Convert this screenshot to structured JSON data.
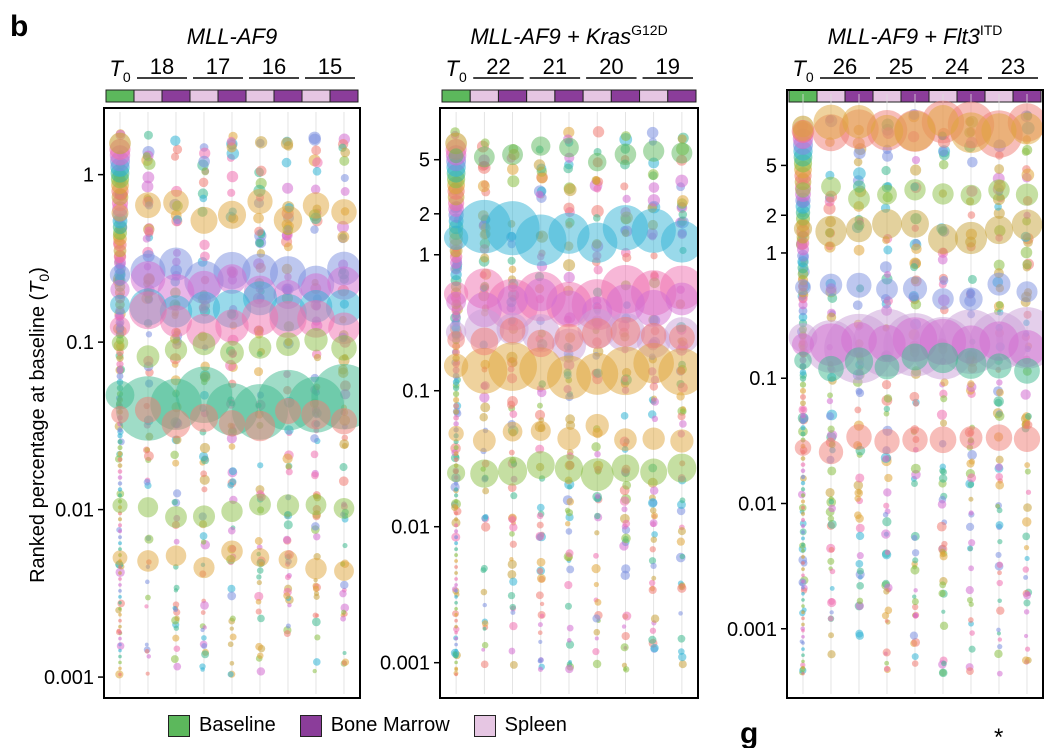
{
  "figure": {
    "panel_letter": "b",
    "next_panel_letter": "g",
    "asterisk": "*",
    "y_axis_label": "Ranked percentage at baseline (T0)",
    "y_axis_label_prefix": "Ranked percentage at baseline (",
    "y_axis_label_T": "T",
    "y_axis_label_sub": "0",
    "y_axis_label_suffix": ")"
  },
  "legend": {
    "items": [
      {
        "label": "Baseline",
        "color": "#5cb85c"
      },
      {
        "label": "Bone Marrow",
        "color": "#8b3d9a"
      },
      {
        "label": "Spleen",
        "color": "#e6c6e3"
      }
    ]
  },
  "colors": {
    "baseline": "#5cb85c",
    "bone_marrow": "#8b3d9a",
    "spleen": "#e6c6e3",
    "bubble_palette": [
      "#f07c73",
      "#e0a63b",
      "#8bbf45",
      "#3fb98f",
      "#33b4d6",
      "#7b8fe0",
      "#d36ed1",
      "#f070b0",
      "#c8a33c"
    ]
  },
  "chart_data": [
    {
      "type": "scatter",
      "title": "MLL-AF9",
      "title_parts": {
        "main": "MLL-AF9",
        "gene": "",
        "superscript": ""
      },
      "baseline_label": "T0",
      "baseline_T": "T",
      "baseline_sub": "0",
      "mice": [
        "18",
        "17",
        "16",
        "15"
      ],
      "y_scale": "log",
      "ylim": [
        0.00075,
        2.5
      ],
      "y_ticks": [
        {
          "value": 1,
          "label": "1"
        },
        {
          "value": 0.1,
          "label": "0.1"
        },
        {
          "value": 0.01,
          "label": "0.01"
        },
        {
          "value": 0.001,
          "label": "0.001"
        }
      ],
      "dominant_clones": [
        {
          "y": 0.045,
          "size": 3.0,
          "color": "#3fb98f"
        },
        {
          "y": 0.26,
          "size": 1.5,
          "color": "#7b8fe0"
        },
        {
          "y": 0.22,
          "size": 1.3,
          "color": "#d36ed1"
        },
        {
          "y": 0.16,
          "size": 1.4,
          "color": "#33b4d6"
        },
        {
          "y": 0.135,
          "size": 1.5,
          "color": "#f070b0"
        },
        {
          "y": 0.62,
          "size": 0.9,
          "color": "#e0a63b"
        },
        {
          "y": 0.09,
          "size": 0.8,
          "color": "#8bbf45"
        },
        {
          "y": 0.035,
          "size": 1.0,
          "color": "#f07c73"
        },
        {
          "y": 0.01,
          "size": 0.55,
          "color": "#8bbf45"
        },
        {
          "y": 0.005,
          "size": 0.5,
          "color": "#e0a63b"
        }
      ],
      "grid": false
    },
    {
      "type": "scatter",
      "title": "MLL-AF9 + KrasG12D",
      "title_parts": {
        "main": "MLL-AF9 + ",
        "gene": "Kras",
        "superscript": "G12D"
      },
      "baseline_label": "T0",
      "baseline_T": "T",
      "baseline_sub": "0",
      "mice": [
        "22",
        "21",
        "20",
        "19"
      ],
      "y_scale": "log",
      "ylim": [
        0.00055,
        12
      ],
      "y_ticks": [
        {
          "value": 5,
          "label": "5"
        },
        {
          "value": 2,
          "label": "2"
        },
        {
          "value": 1,
          "label": "1"
        },
        {
          "value": 0.1,
          "label": "0.1"
        },
        {
          "value": 0.01,
          "label": "0.01"
        },
        {
          "value": 0.001,
          "label": "0.001"
        }
      ],
      "dominant_clones": [
        {
          "y": 1.4,
          "size": 2.2,
          "color": "#33b4d6"
        },
        {
          "y": 0.5,
          "size": 2.2,
          "color": "#f070b0"
        },
        {
          "y": 0.45,
          "size": 1.4,
          "color": "#d36ed1"
        },
        {
          "y": 0.25,
          "size": 1.5,
          "color": "#c9a0d8"
        },
        {
          "y": 0.14,
          "size": 2.2,
          "color": "#e0a63b"
        },
        {
          "y": 0.25,
          "size": 1.0,
          "color": "#f07c73"
        },
        {
          "y": 0.025,
          "size": 1.1,
          "color": "#8bbf45"
        },
        {
          "y": 5.5,
          "size": 0.5,
          "color": "#5cb85c"
        },
        {
          "y": 0.05,
          "size": 0.6,
          "color": "#e0a63b"
        }
      ],
      "grid": false
    },
    {
      "type": "scatter",
      "title": "MLL-AF9 + Flt3ITD",
      "title_parts": {
        "main": "MLL-AF9 + ",
        "gene": "Flt3",
        "superscript": "ITD"
      },
      "baseline_label": "T0",
      "baseline_T": "T",
      "baseline_sub": "0",
      "mice": [
        "26",
        "25",
        "24",
        "23"
      ],
      "y_scale": "log",
      "ylim": [
        0.00028,
        20
      ],
      "y_ticks": [
        {
          "value": 5,
          "label": "5"
        },
        {
          "value": 2,
          "label": "2"
        },
        {
          "value": 1,
          "label": "1"
        },
        {
          "value": 0.1,
          "label": "0.1"
        },
        {
          "value": 0.01,
          "label": "0.01"
        },
        {
          "value": 0.001,
          "label": "0.001"
        }
      ],
      "dominant_clones": [
        {
          "y": 10,
          "size": 1.9,
          "color": "#f07c73"
        },
        {
          "y": 10,
          "size": 1.5,
          "color": "#e0a63b"
        },
        {
          "y": 0.2,
          "size": 3.0,
          "color": "#c9a0d8"
        },
        {
          "y": 0.2,
          "size": 1.8,
          "color": "#d36ed1"
        },
        {
          "y": 1.5,
          "size": 1.1,
          "color": "#c8a33c"
        },
        {
          "y": 0.13,
          "size": 1.0,
          "color": "#3fb98f"
        },
        {
          "y": 0.03,
          "size": 0.8,
          "color": "#f07c73"
        },
        {
          "y": 0.5,
          "size": 0.7,
          "color": "#7b8fe0"
        },
        {
          "y": 3,
          "size": 0.6,
          "color": "#8bbf45"
        }
      ],
      "grid": false
    }
  ]
}
